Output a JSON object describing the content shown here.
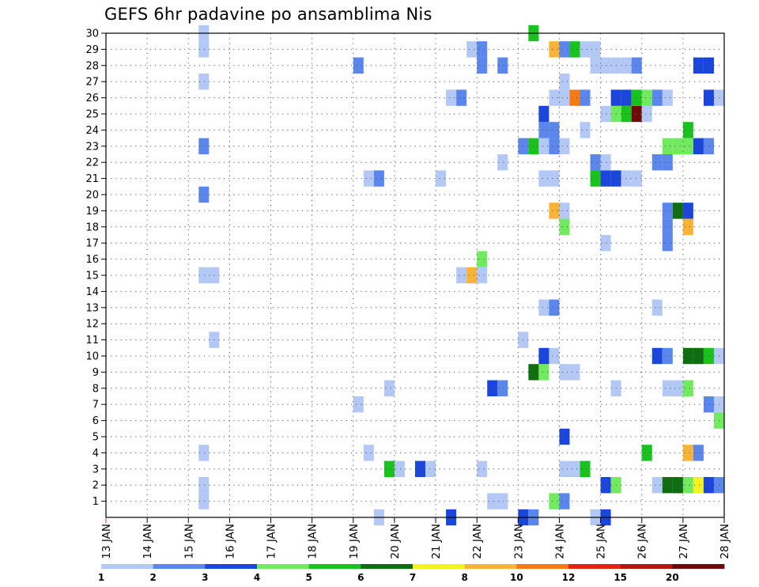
{
  "title": "GEFS 6hr padavine po ansamblima Nis",
  "chart_data": {
    "type": "heatmap",
    "title": "GEFS 6hr padavine po ansamblima Nis",
    "xlabel": "",
    "ylabel": "",
    "x_ticks": [
      "13 JAN",
      "14 JAN",
      "15 JAN",
      "16 JAN",
      "17 JAN",
      "18 JAN",
      "19 JAN",
      "20 JAN",
      "21 JAN",
      "22 JAN",
      "23 JAN",
      "24 JAN",
      "25 JAN",
      "26 JAN",
      "27 JAN",
      "28 JAN"
    ],
    "y_ticks": [
      "1",
      "2",
      "3",
      "4",
      "5",
      "6",
      "7",
      "8",
      "9",
      "10",
      "11",
      "12",
      "13",
      "14",
      "15",
      "16",
      "17",
      "18",
      "19",
      "20",
      "21",
      "22",
      "23",
      "24",
      "25",
      "26",
      "27",
      "28",
      "29",
      "30"
    ],
    "ylim": [
      0,
      30
    ],
    "xlim_days": [
      0,
      15
    ],
    "grid": true,
    "colorbar": {
      "position": "bottom",
      "colors": [
        "#b3c8f5",
        "#5b86ec",
        "#1a46dc",
        "#72ea60",
        "#19c21e",
        "#0f6e10",
        "#f3f321",
        "#f9b339",
        "#f47a14",
        "#e2230f",
        "#b4170d",
        "#6e0a08"
      ],
      "labels": [
        "1",
        "2",
        "3",
        "4",
        "5",
        "6",
        "7",
        "8",
        "10",
        "12",
        "15",
        "20"
      ]
    },
    "cell_days_step": 0.25,
    "cells": [
      [
        2.25,
        1,
        1
      ],
      [
        2.25,
        2,
        1
      ],
      [
        2.25,
        4,
        1
      ],
      [
        2.25,
        15,
        1
      ],
      [
        2.5,
        15,
        1
      ],
      [
        2.25,
        20,
        2
      ],
      [
        2.25,
        23,
        2
      ],
      [
        2.25,
        27,
        1
      ],
      [
        2.25,
        29,
        1
      ],
      [
        2.25,
        30,
        1
      ],
      [
        2.5,
        11,
        1
      ],
      [
        6,
        7,
        1
      ],
      [
        6,
        28,
        2
      ],
      [
        6.25,
        4,
        1
      ],
      [
        6.25,
        21,
        1
      ],
      [
        6.5,
        21,
        2
      ],
      [
        6.5,
        0,
        1
      ],
      [
        6.75,
        8,
        1
      ],
      [
        6.75,
        3,
        5
      ],
      [
        7,
        3,
        1
      ],
      [
        7.5,
        3,
        3
      ],
      [
        7.75,
        3,
        1
      ],
      [
        8,
        21,
        1
      ],
      [
        8.25,
        26,
        1
      ],
      [
        8.5,
        26,
        2
      ],
      [
        8.25,
        0,
        3
      ],
      [
        8.5,
        15,
        1
      ],
      [
        8.75,
        15,
        8
      ],
      [
        9,
        15,
        1
      ],
      [
        9,
        16,
        4
      ],
      [
        8.75,
        29,
        1
      ],
      [
        9,
        29,
        2
      ],
      [
        9,
        28,
        2
      ],
      [
        9,
        3,
        1
      ],
      [
        9.25,
        1,
        1
      ],
      [
        9.5,
        1,
        1
      ],
      [
        9.25,
        8,
        3
      ],
      [
        9.5,
        8,
        2
      ],
      [
        9.5,
        22,
        1
      ],
      [
        9.5,
        28,
        2
      ],
      [
        10,
        11,
        1
      ],
      [
        10,
        0,
        3
      ],
      [
        10.25,
        0,
        2
      ],
      [
        10,
        23,
        2
      ],
      [
        10.25,
        9,
        6
      ],
      [
        10.25,
        23,
        5
      ],
      [
        10.25,
        30,
        5
      ],
      [
        10.5,
        9,
        4
      ],
      [
        10.5,
        10,
        3
      ],
      [
        10.5,
        13,
        1
      ],
      [
        10.5,
        21,
        1
      ],
      [
        10.5,
        23,
        1
      ],
      [
        10.5,
        24,
        2
      ],
      [
        10.5,
        25,
        3
      ],
      [
        10.75,
        10,
        1
      ],
      [
        10.75,
        13,
        2
      ],
      [
        10.75,
        21,
        1
      ],
      [
        10.75,
        23,
        2
      ],
      [
        10.75,
        24,
        2
      ],
      [
        10.75,
        26,
        1
      ],
      [
        10.75,
        29,
        8
      ],
      [
        10.75,
        19,
        8
      ],
      [
        10.75,
        1,
        4
      ],
      [
        11,
        1,
        2
      ],
      [
        11,
        3,
        1
      ],
      [
        11,
        5,
        3
      ],
      [
        11,
        9,
        1
      ],
      [
        11,
        18,
        4
      ],
      [
        11,
        19,
        1
      ],
      [
        11,
        23,
        1
      ],
      [
        11,
        26,
        1
      ],
      [
        11,
        27,
        1
      ],
      [
        11,
        29,
        2
      ],
      [
        11.25,
        3,
        1
      ],
      [
        11.25,
        9,
        1
      ],
      [
        11.25,
        26,
        9
      ],
      [
        11.25,
        29,
        5
      ],
      [
        11.5,
        3,
        5
      ],
      [
        11.5,
        26,
        2
      ],
      [
        11.5,
        24,
        1
      ],
      [
        11.5,
        29,
        1
      ],
      [
        11.75,
        29,
        1
      ],
      [
        11.75,
        0,
        1
      ],
      [
        12,
        0,
        3
      ],
      [
        11.75,
        21,
        5
      ],
      [
        11.75,
        22,
        2
      ],
      [
        11.75,
        28,
        1
      ],
      [
        12,
        21,
        3
      ],
      [
        12,
        22,
        1
      ],
      [
        12,
        28,
        1
      ],
      [
        12,
        2,
        3
      ],
      [
        12,
        25,
        1
      ],
      [
        12,
        17,
        1
      ],
      [
        12.25,
        2,
        4
      ],
      [
        12.25,
        21,
        3
      ],
      [
        12.25,
        25,
        4
      ],
      [
        12.25,
        26,
        3
      ],
      [
        12.25,
        28,
        1
      ],
      [
        12.25,
        8,
        1
      ],
      [
        12.5,
        21,
        1
      ],
      [
        12.5,
        25,
        5
      ],
      [
        12.5,
        26,
        3
      ],
      [
        12.5,
        28,
        1
      ],
      [
        12.75,
        21,
        1
      ],
      [
        12.75,
        25,
        12
      ],
      [
        12.75,
        26,
        5
      ],
      [
        12.75,
        28,
        2
      ],
      [
        13,
        25,
        1
      ],
      [
        13,
        26,
        4
      ],
      [
        13,
        4,
        5
      ],
      [
        13.25,
        2,
        1
      ],
      [
        13.25,
        13,
        1
      ],
      [
        13.25,
        22,
        2
      ],
      [
        13.5,
        22,
        2
      ],
      [
        13.5,
        26,
        1
      ],
      [
        13.25,
        26,
        2
      ],
      [
        13.25,
        10,
        3
      ],
      [
        13.5,
        10,
        2
      ],
      [
        13.5,
        2,
        6
      ],
      [
        13.75,
        2,
        3
      ],
      [
        13.5,
        8,
        1
      ],
      [
        13.75,
        8,
        1
      ],
      [
        13.5,
        17,
        2
      ],
      [
        13.5,
        18,
        2
      ],
      [
        13.5,
        19,
        2
      ],
      [
        13.5,
        23,
        4
      ],
      [
        13.75,
        23,
        4
      ],
      [
        13.75,
        19,
        6
      ],
      [
        14,
        19,
        3
      ],
      [
        13.75,
        2,
        6
      ],
      [
        14,
        2,
        4
      ],
      [
        14,
        8,
        4
      ],
      [
        14,
        4,
        8
      ],
      [
        14.25,
        4,
        2
      ],
      [
        14,
        10,
        6
      ],
      [
        14,
        18,
        8
      ],
      [
        14,
        24,
        5
      ],
      [
        14,
        23,
        4
      ],
      [
        14.25,
        23,
        3
      ],
      [
        14.5,
        23,
        2
      ],
      [
        14.25,
        10,
        6
      ],
      [
        14.5,
        10,
        5
      ],
      [
        14.75,
        10,
        1
      ],
      [
        14.25,
        2,
        7
      ],
      [
        14.5,
        2,
        3
      ],
      [
        14.75,
        2,
        2
      ],
      [
        14.25,
        28,
        3
      ],
      [
        14.5,
        28,
        3
      ],
      [
        14.5,
        26,
        3
      ],
      [
        14.75,
        26,
        1
      ],
      [
        14.5,
        7,
        2
      ],
      [
        14.75,
        7,
        1
      ],
      [
        14.75,
        6,
        4
      ],
      [
        14.5,
        23,
        2
      ]
    ]
  }
}
